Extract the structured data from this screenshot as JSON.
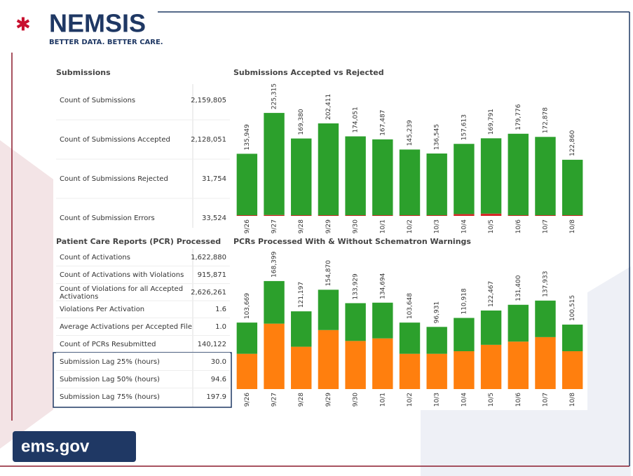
{
  "header": {
    "logo": "NEMSIS",
    "tagline": "BETTER DATA. BETTER CARE."
  },
  "footer": {
    "logo": "ems.gov"
  },
  "tables": [
    {
      "title": "Submissions",
      "rows": [
        [
          "Count of Submissions",
          "2,159,805"
        ],
        [
          "Count of Submissions Accepted",
          "2,128,051"
        ],
        [
          "Count of Submissions Rejected",
          "31,754"
        ],
        [
          "Count of Submission Errors",
          "33,524"
        ]
      ]
    },
    {
      "title": "Patient Care Reports (PCR) Processed",
      "rows": [
        [
          "Count of Activations",
          "1,622,880"
        ],
        [
          "Count of Activations with Violations",
          "915,871"
        ],
        [
          "Count of Violations for all Accepted Activations",
          "2,626,261"
        ],
        [
          "Violations Per Activation",
          "1.6"
        ],
        [
          "Average Activations per Accepted File",
          "1.0"
        ],
        [
          "Count of PCRs Resubmitted",
          "140,122"
        ],
        [
          "Submission Lag 25% (hours)",
          "30.0"
        ],
        [
          "Submission Lag 50% (hours)",
          "94.6"
        ],
        [
          "Submission Lag 75% (hours)",
          "197.9"
        ]
      ]
    }
  ],
  "chart_data": [
    {
      "type": "stacked_bar",
      "title": "Submissions Accepted vs Rejected",
      "categories": [
        "9/26",
        "9/27",
        "9/28",
        "9/29",
        "9/30",
        "10/1",
        "10/2",
        "10/3",
        "10/4",
        "10/5",
        "10/6",
        "10/7",
        "10/8"
      ],
      "series": [
        {
          "color": "#d62728",
          "values": [
            1500,
            2000,
            1500,
            1500,
            1500,
            1500,
            1500,
            1500,
            4000,
            5000,
            1500,
            1500,
            1500
          ]
        },
        {
          "color": "#2ca02c",
          "values": [
            134449,
            223315,
            167880,
            200911,
            172551,
            165987,
            143739,
            135045,
            153613,
            164791,
            178276,
            171378,
            121360
          ]
        }
      ],
      "total_labels": [
        "135,949",
        "225,315",
        "169,380",
        "202,411",
        "174,051",
        "167,487",
        "145,239",
        "136,545",
        "157,613",
        "169,791",
        "179,776",
        "172,878",
        "122,860"
      ],
      "ylim": [
        0,
        250000
      ]
    },
    {
      "type": "stacked_bar",
      "title": "PCRs Processed With & Without Schematron Warnings",
      "categories": [
        "9/26",
        "9/27",
        "9/28",
        "9/29",
        "9/30",
        "10/1",
        "10/2",
        "10/3",
        "10/4",
        "10/5",
        "10/6",
        "10/7",
        "10/8"
      ],
      "series": [
        {
          "color": "#ff7f0e",
          "values": [
            55000,
            102000,
            66000,
            92000,
            75000,
            79000,
            55000,
            55000,
            59000,
            69000,
            74000,
            81000,
            59000
          ]
        },
        {
          "color": "#2ca02c",
          "values": [
            48669,
            66399,
            55197,
            62870,
            58929,
            55694,
            48648,
            41931,
            51918,
            53467,
            57400,
            56933,
            41515
          ]
        }
      ],
      "total_labels": [
        "103,669",
        "168,399",
        "121,197",
        "154,870",
        "133,929",
        "134,694",
        "103,648",
        "96,931",
        "110,918",
        "122,467",
        "131,400",
        "137,933",
        "100,515"
      ],
      "ylim": [
        0,
        200000
      ]
    }
  ]
}
